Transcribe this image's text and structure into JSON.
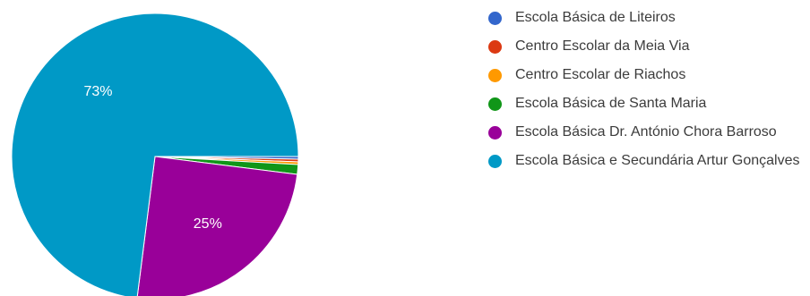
{
  "chart_data": {
    "type": "pie",
    "title": "",
    "series": [
      {
        "name": "Escola Básica de Liteiros",
        "value": 0.3,
        "color": "#3366cc"
      },
      {
        "name": "Centro Escolar da Meia Via",
        "value": 0.3,
        "color": "#dc3912"
      },
      {
        "name": "Centro Escolar de Riachos",
        "value": 0.3,
        "color": "#ff9900"
      },
      {
        "name": "Escola Básica de Santa Maria",
        "value": 1.1,
        "color": "#109618"
      },
      {
        "name": "Escola Básica Dr. António Chora Barroso",
        "value": 25,
        "color": "#990099"
      },
      {
        "name": "Escola Básica e Secundária Artur Gonçalves",
        "value": 73,
        "color": "#0099c6"
      }
    ],
    "data_labels": [
      {
        "series": "Escola Básica e Secundária Artur Gonçalves",
        "text": "73%"
      },
      {
        "series": "Escola Básica Dr. António Chora Barroso",
        "text": "25%"
      }
    ],
    "legend_position": "right"
  }
}
